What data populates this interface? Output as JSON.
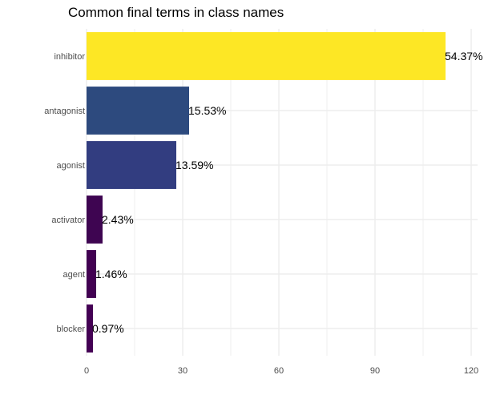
{
  "chart_data": {
    "type": "bar",
    "orientation": "horizontal",
    "title": "Common final terms in class names",
    "xlabel": "",
    "ylabel": "",
    "categories": [
      "inhibitor",
      "antagonist",
      "agonist",
      "activator",
      "agent",
      "blocker"
    ],
    "values": [
      112,
      32,
      28,
      5,
      3,
      2
    ],
    "labels": [
      "54.37%",
      "15.53%",
      "13.59%",
      "2.43%",
      "1.46%",
      "0.97%"
    ],
    "colors": [
      "#FDE725",
      "#2D4A7E",
      "#323D80",
      "#3E0551",
      "#420152",
      "#440154"
    ],
    "xticks": [
      0,
      30,
      60,
      90,
      120
    ],
    "xlim": [
      0,
      122
    ],
    "grid": true,
    "legend": "none"
  }
}
